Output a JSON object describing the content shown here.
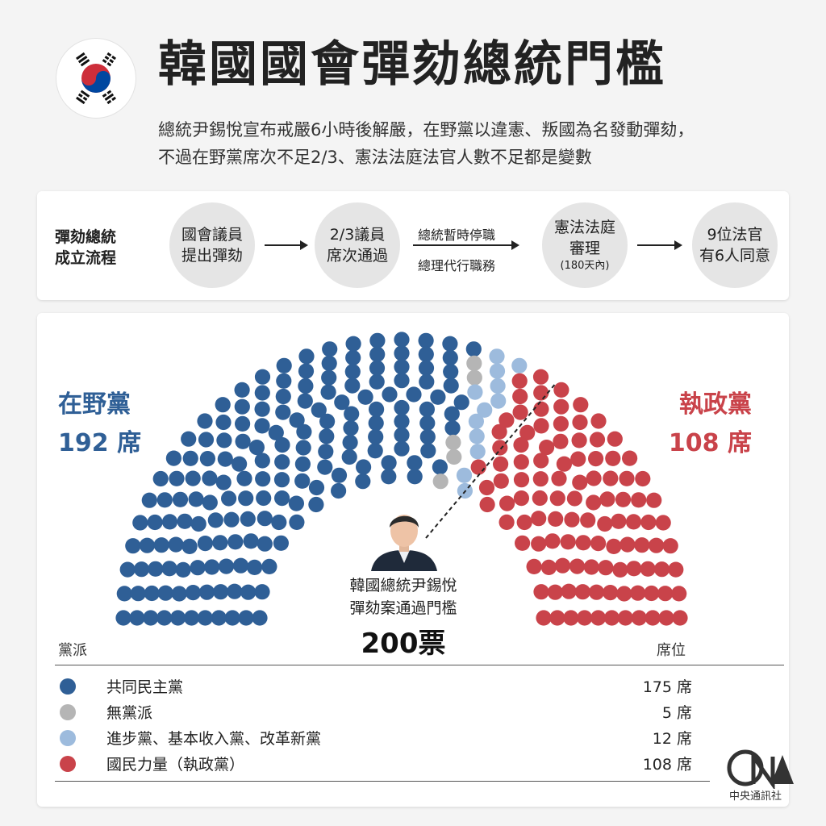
{
  "header": {
    "title": "韓國國會彈劾總統門檻",
    "subtitle_line1": "總統尹錫悅宣布戒嚴6小時後解嚴，在野黨以違憲、叛國為名發動彈劾，",
    "subtitle_line2": "不過在野黨席次不足2/3、憲法法庭法官人數不足都是變數"
  },
  "flow": {
    "label_line1": "彈劾總統",
    "label_line2": "成立流程",
    "steps": [
      {
        "line1": "國會議員",
        "line2": "提出彈劾"
      },
      {
        "line1": "2/3議員",
        "line2": "席次通過"
      },
      {
        "line1": "憲法法庭",
        "line2": "審理",
        "note": "(180天內)"
      },
      {
        "line1": "9位法官",
        "line2": "有6人同意"
      }
    ],
    "arrow_text_top": "總統暫時停職",
    "arrow_text_bottom": "總理代行職務"
  },
  "opposition": {
    "label": "在野黨",
    "seats": "192 席"
  },
  "ruling": {
    "label": "執政黨",
    "seats": "108 席"
  },
  "caption": {
    "line1": "韓國總統尹錫悅",
    "line2": "彈劾案通過門檻",
    "threshold": "200票"
  },
  "legend": {
    "col_party": "黨派",
    "col_seats": "席位",
    "rows": [
      {
        "name": "共同民主黨",
        "seats": "175 席",
        "color": "#2f5f96"
      },
      {
        "name": "無黨派",
        "seats": "5 席",
        "color": "#b5b5b5"
      },
      {
        "name": "進步黨、基本收入黨、改革新黨",
        "seats": "12 席",
        "color": "#9dbbdd"
      },
      {
        "name": "國民力量（執政黨）",
        "seats": "108 席",
        "color": "#c9434a"
      }
    ]
  },
  "source": "中央通訊社",
  "chart_data": {
    "type": "parliament",
    "total_seats": 300,
    "threshold": 200,
    "series": [
      {
        "name": "共同民主黨",
        "value": 175,
        "color": "#2f5f96"
      },
      {
        "name": "無黨派",
        "value": 5,
        "color": "#b5b5b5"
      },
      {
        "name": "進步黨、基本收入黨、改革新黨",
        "value": 12,
        "color": "#9dbbdd"
      },
      {
        "name": "國民力量（執政黨）",
        "value": 108,
        "color": "#c9434a"
      }
    ]
  }
}
